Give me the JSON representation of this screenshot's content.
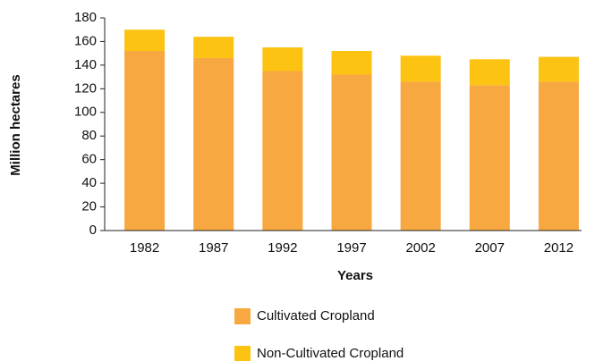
{
  "chart_data": {
    "type": "stacked_bar",
    "xlabel": "Years",
    "ylabel": "Million hectares",
    "categories": [
      "1982",
      "1987",
      "1992",
      "1997",
      "2002",
      "2007",
      "2012"
    ],
    "series": [
      {
        "name": "Cultivated Cropland",
        "color": "#f8a840",
        "values": [
          152,
          146,
          135,
          132,
          126,
          123,
          126
        ]
      },
      {
        "name": "Non-Cultivated Cropland",
        "color": "#fcc313",
        "values": [
          18,
          18,
          20,
          20,
          22,
          22,
          21
        ]
      }
    ],
    "ylim": [
      0,
      180
    ],
    "yticks": [
      0,
      20,
      40,
      60,
      80,
      100,
      120,
      140,
      160,
      180
    ],
    "grid": false,
    "legend": "bottom"
  }
}
